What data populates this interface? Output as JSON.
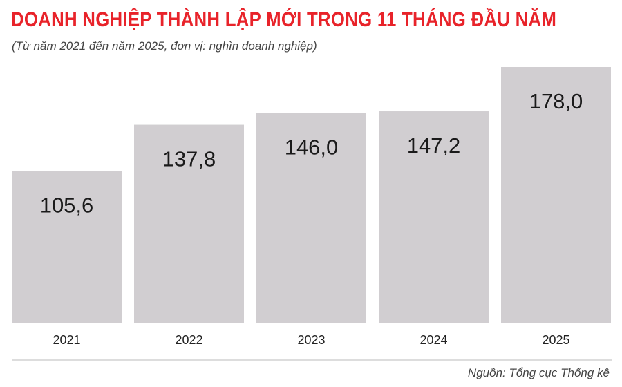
{
  "colors": {
    "title": "#e8232a",
    "bar": "#d1ced1",
    "axis": "#bbbbbb"
  },
  "source": "Nguồn: Tổng cục Thống kê",
  "chart_data": {
    "type": "bar",
    "title": "DOANH NGHIỆP THÀNH LẬP MỚI TRONG 11 THÁNG ĐẦU NĂM",
    "subtitle": "(Từ năm 2021 đến năm 2025, đơn vị: nghìn doanh nghiệp)",
    "categories": [
      "2021",
      "2022",
      "2023",
      "2024",
      "2025"
    ],
    "values": [
      105.6,
      137.8,
      146.0,
      147.2,
      178.0
    ],
    "value_labels": [
      "105,6",
      "137,8",
      "146,0",
      "147,2",
      "178,0"
    ],
    "xlabel": "",
    "ylabel": "",
    "ylim": [
      0,
      178.0
    ],
    "grid": false,
    "legend": "none"
  }
}
